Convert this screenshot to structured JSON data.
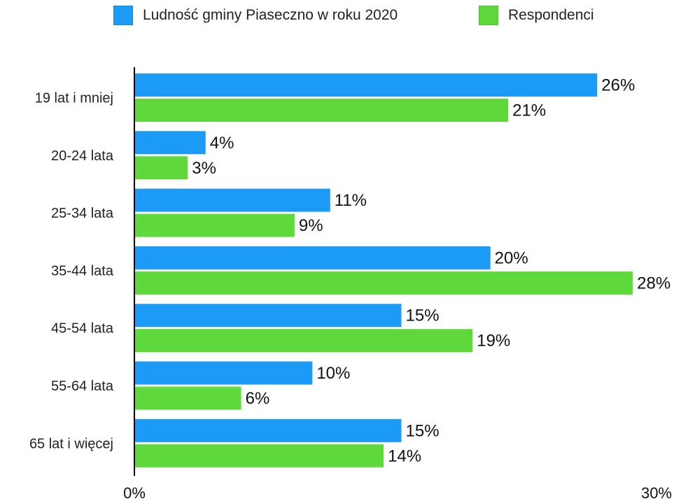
{
  "chart_data": {
    "type": "bar",
    "orientation": "horizontal",
    "categories": [
      "19 lat i mniej",
      "20-24 lata",
      "25-34 lata",
      "35-44 lata",
      "45-54 lata",
      "55-64 lata",
      "65 lat i więcej"
    ],
    "series": [
      {
        "name": "Ludność gminy Piaseczno w roku 2020",
        "values": [
          26,
          4,
          11,
          20,
          15,
          10,
          15
        ],
        "color": "#1b9bf6"
      },
      {
        "name": "Respondenci",
        "values": [
          21,
          3,
          9,
          28,
          19,
          6,
          14
        ],
        "color": "#5fd83c"
      }
    ],
    "value_suffix": "%",
    "xlim": [
      0,
      30
    ],
    "x_tick_labels": [
      "0%",
      "30%"
    ],
    "legend_position": "top-center",
    "grid": false,
    "title": "",
    "xlabel": "",
    "ylabel": ""
  }
}
